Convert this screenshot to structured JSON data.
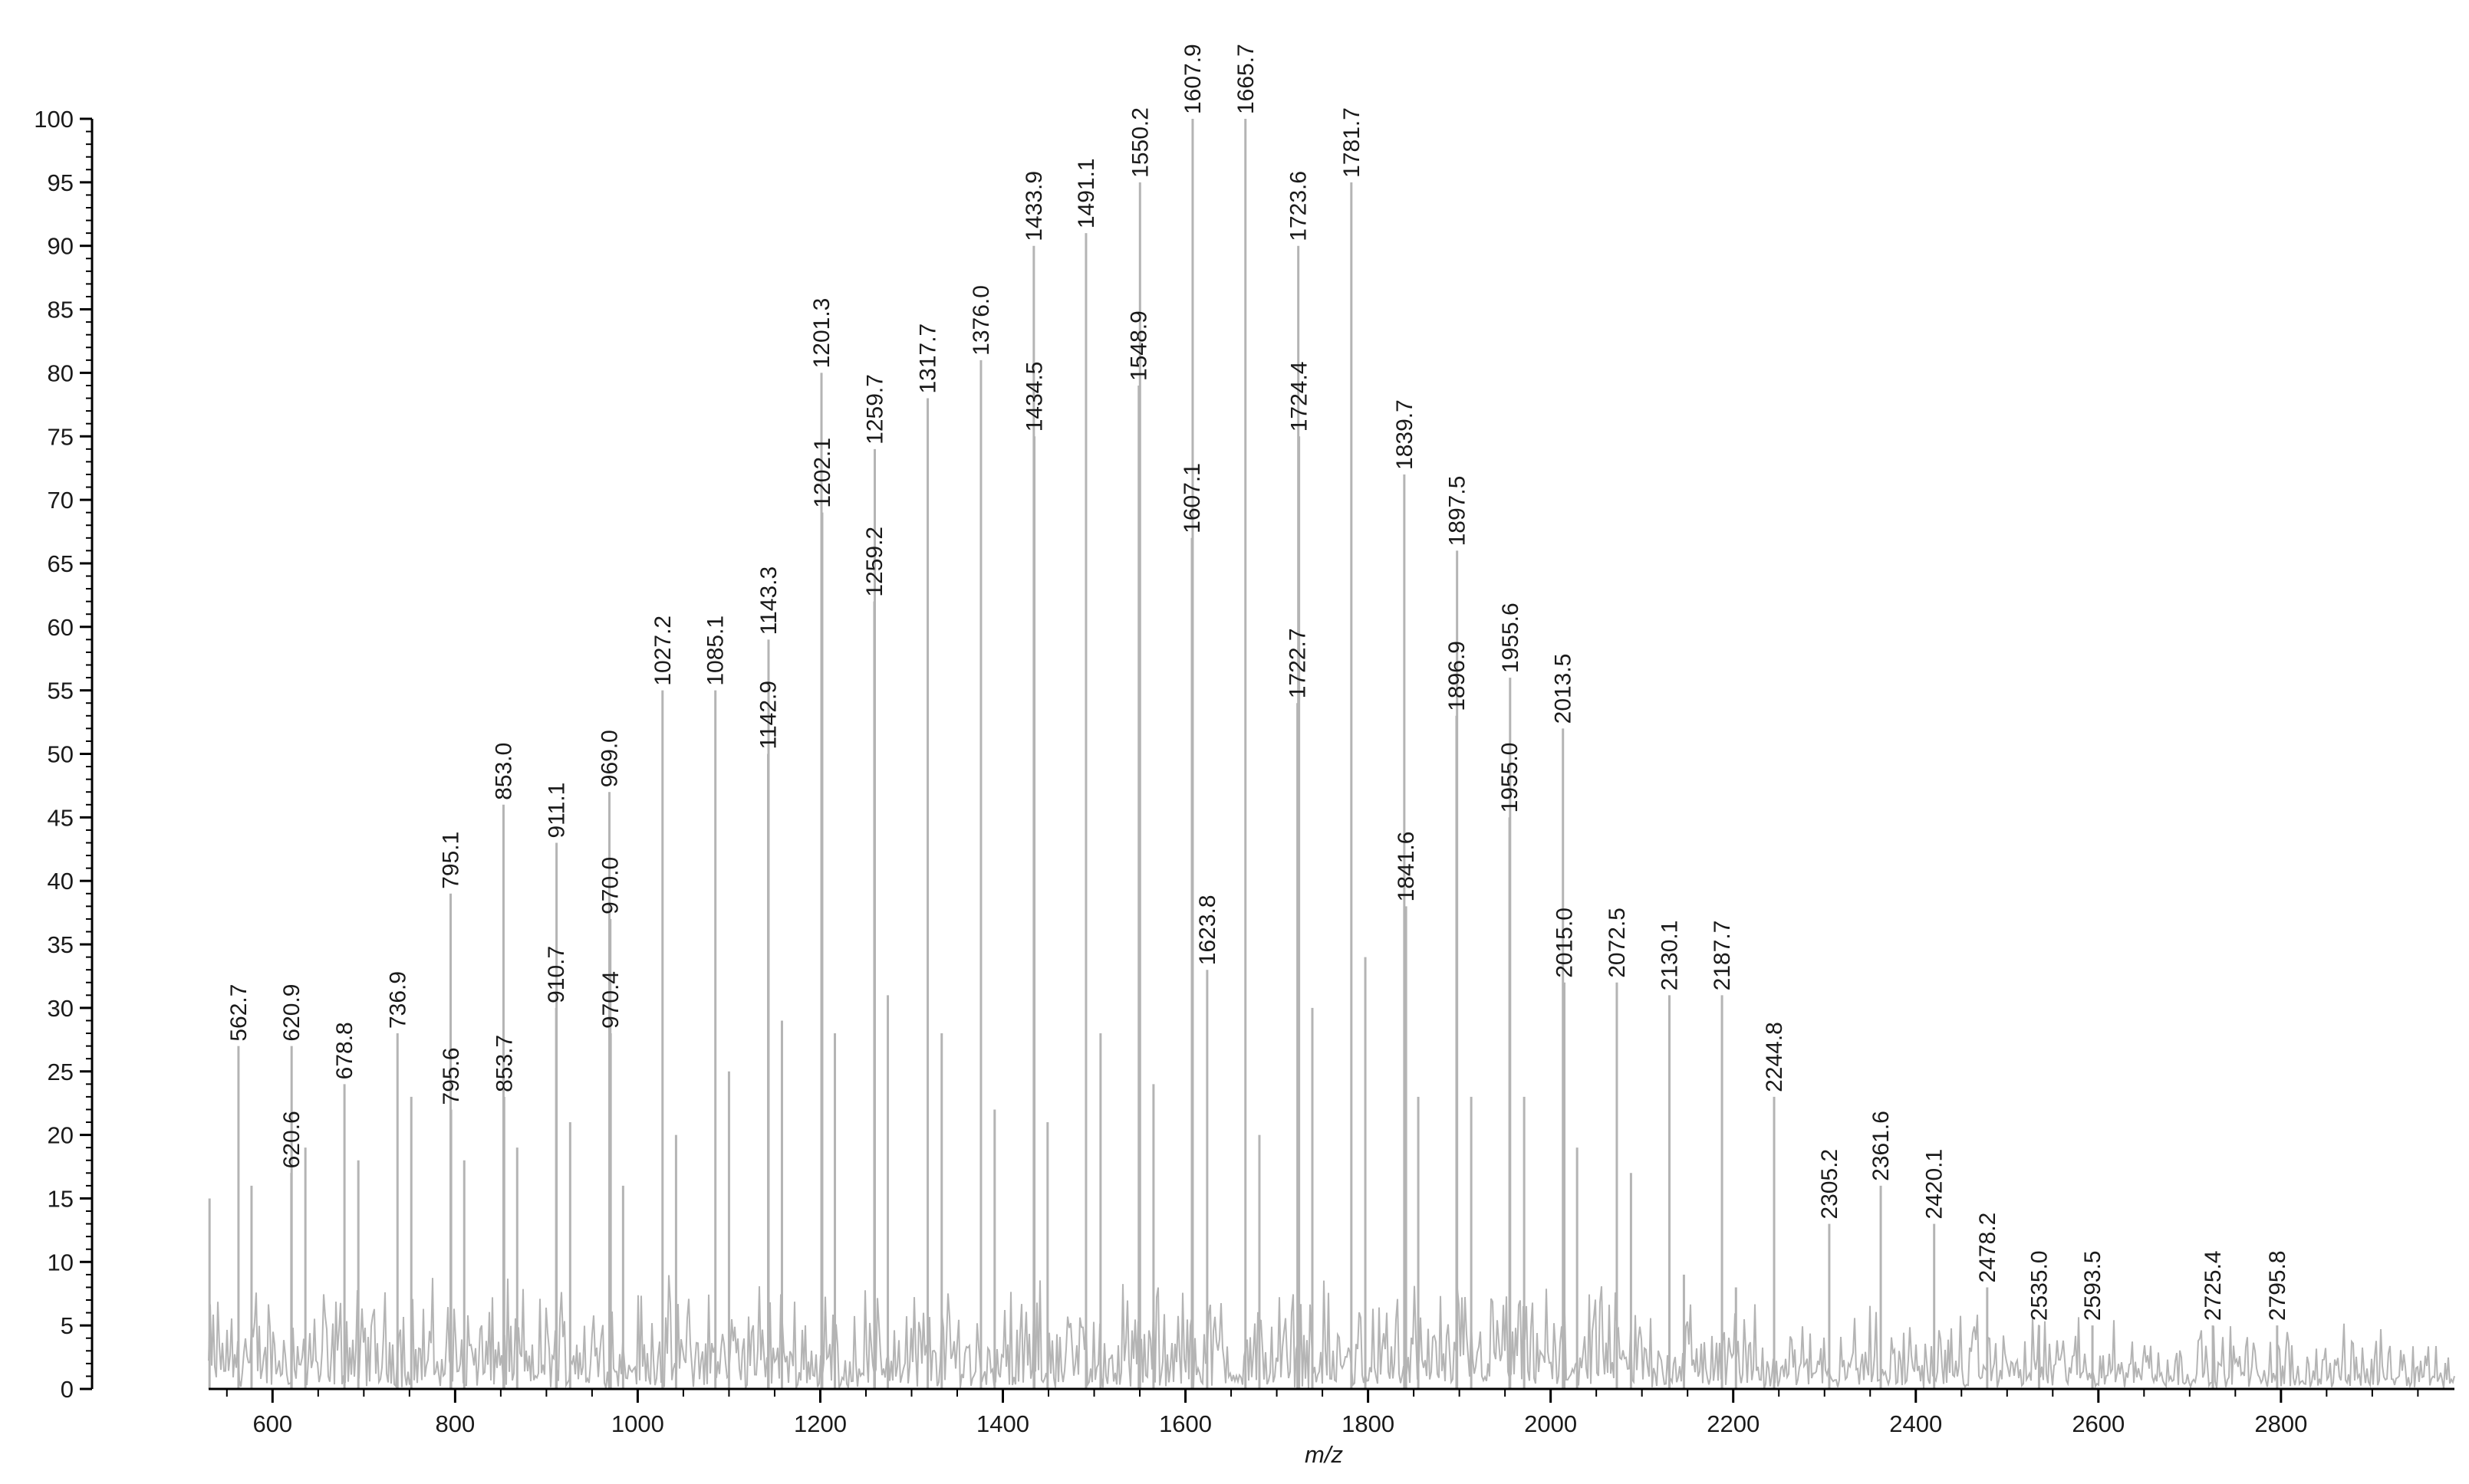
{
  "chart_data": {
    "type": "line",
    "xlabel": "m/z",
    "ylabel": "",
    "xlim": [
      530,
      2990
    ],
    "ylim": [
      0,
      100
    ],
    "grid": false,
    "x_ticks": [
      600,
      800,
      1000,
      1200,
      1400,
      1600,
      1800,
      2000,
      2200,
      2400,
      2600,
      2800
    ],
    "y_ticks": [
      0,
      5,
      10,
      15,
      20,
      25,
      30,
      35,
      40,
      45,
      50,
      55,
      60,
      65,
      70,
      75,
      80,
      85,
      90,
      95,
      100
    ],
    "colors": {
      "spectrum": "#b4b4b4",
      "axis": "#000000",
      "text": "#1a1a1a"
    },
    "labeled_peaks": [
      {
        "mz": 562.7,
        "label": "562.7",
        "intensity": 27
      },
      {
        "mz": 620.6,
        "label": "620.6",
        "intensity": 17
      },
      {
        "mz": 620.9,
        "label": "620.9",
        "intensity": 27
      },
      {
        "mz": 678.8,
        "label": "678.8",
        "intensity": 24
      },
      {
        "mz": 736.9,
        "label": "736.9",
        "intensity": 28
      },
      {
        "mz": 795.1,
        "label": "795.1",
        "intensity": 39
      },
      {
        "mz": 795.6,
        "label": "795.6",
        "intensity": 22
      },
      {
        "mz": 853.0,
        "label": "853.0",
        "intensity": 46
      },
      {
        "mz": 853.7,
        "label": "853.7",
        "intensity": 23
      },
      {
        "mz": 910.7,
        "label": "910.7",
        "intensity": 30
      },
      {
        "mz": 911.1,
        "label": "911.1",
        "intensity": 43
      },
      {
        "mz": 969.0,
        "label": "969.0",
        "intensity": 47
      },
      {
        "mz": 970.0,
        "label": "970.0",
        "intensity": 37
      },
      {
        "mz": 970.4,
        "label": "970.4",
        "intensity": 28
      },
      {
        "mz": 1027.2,
        "label": "1027.2",
        "intensity": 55
      },
      {
        "mz": 1085.1,
        "label": "1085.1",
        "intensity": 55
      },
      {
        "mz": 1142.9,
        "label": "1142.9",
        "intensity": 50
      },
      {
        "mz": 1143.3,
        "label": "1143.3",
        "intensity": 59
      },
      {
        "mz": 1201.3,
        "label": "1201.3",
        "intensity": 80
      },
      {
        "mz": 1202.1,
        "label": "1202.1",
        "intensity": 69
      },
      {
        "mz": 1259.2,
        "label": "1259.2",
        "intensity": 62
      },
      {
        "mz": 1259.7,
        "label": "1259.7",
        "intensity": 74
      },
      {
        "mz": 1317.7,
        "label": "1317.7",
        "intensity": 78
      },
      {
        "mz": 1376.0,
        "label": "1376.0",
        "intensity": 81
      },
      {
        "mz": 1433.9,
        "label": "1433.9",
        "intensity": 90
      },
      {
        "mz": 1434.5,
        "label": "1434.5",
        "intensity": 75
      },
      {
        "mz": 1491.1,
        "label": "1491.1",
        "intensity": 91
      },
      {
        "mz": 1548.9,
        "label": "1548.9",
        "intensity": 79
      },
      {
        "mz": 1550.2,
        "label": "1550.2",
        "intensity": 95
      },
      {
        "mz": 1607.1,
        "label": "1607.1",
        "intensity": 67
      },
      {
        "mz": 1607.9,
        "label": "1607.9",
        "intensity": 100
      },
      {
        "mz": 1623.8,
        "label": "1623.8",
        "intensity": 33
      },
      {
        "mz": 1665.7,
        "label": "1665.7",
        "intensity": 100
      },
      {
        "mz": 1722.7,
        "label": "1722.7",
        "intensity": 54
      },
      {
        "mz": 1723.6,
        "label": "1723.6",
        "intensity": 90
      },
      {
        "mz": 1724.4,
        "label": "1724.4",
        "intensity": 75
      },
      {
        "mz": 1781.7,
        "label": "1781.7",
        "intensity": 95
      },
      {
        "mz": 1839.7,
        "label": "1839.7",
        "intensity": 72
      },
      {
        "mz": 1841.6,
        "label": "1841.6",
        "intensity": 38
      },
      {
        "mz": 1896.9,
        "label": "1896.9",
        "intensity": 53
      },
      {
        "mz": 1897.5,
        "label": "1897.5",
        "intensity": 66
      },
      {
        "mz": 1955.0,
        "label": "1955.0",
        "intensity": 45
      },
      {
        "mz": 1955.6,
        "label": "1955.6",
        "intensity": 56
      },
      {
        "mz": 2013.5,
        "label": "2013.5",
        "intensity": 52
      },
      {
        "mz": 2015.0,
        "label": "2015.0",
        "intensity": 32
      },
      {
        "mz": 2072.5,
        "label": "2072.5",
        "intensity": 32
      },
      {
        "mz": 2130.1,
        "label": "2130.1",
        "intensity": 31
      },
      {
        "mz": 2187.7,
        "label": "2187.7",
        "intensity": 31
      },
      {
        "mz": 2244.8,
        "label": "2244.8",
        "intensity": 23
      },
      {
        "mz": 2305.2,
        "label": "2305.2",
        "intensity": 13
      },
      {
        "mz": 2361.6,
        "label": "2361.6",
        "intensity": 16
      },
      {
        "mz": 2420.1,
        "label": "2420.1",
        "intensity": 13
      },
      {
        "mz": 2478.2,
        "label": "2478.2",
        "intensity": 8
      },
      {
        "mz": 2535.0,
        "label": "2535.0",
        "intensity": 5
      },
      {
        "mz": 2593.5,
        "label": "2593.5",
        "intensity": 5
      },
      {
        "mz": 2725.4,
        "label": "2725.4",
        "intensity": 5
      },
      {
        "mz": 2795.8,
        "label": "2795.8",
        "intensity": 5
      }
    ],
    "unlabeled_peaks": [
      {
        "mz": 531,
        "intensity": 15
      },
      {
        "mz": 577,
        "intensity": 16
      },
      {
        "mz": 636,
        "intensity": 19
      },
      {
        "mz": 694,
        "intensity": 18
      },
      {
        "mz": 752,
        "intensity": 23
      },
      {
        "mz": 810,
        "intensity": 18
      },
      {
        "mz": 868,
        "intensity": 19
      },
      {
        "mz": 926,
        "intensity": 21
      },
      {
        "mz": 984,
        "intensity": 16
      },
      {
        "mz": 1042,
        "intensity": 20
      },
      {
        "mz": 1100,
        "intensity": 25
      },
      {
        "mz": 1158,
        "intensity": 29
      },
      {
        "mz": 1216,
        "intensity": 28
      },
      {
        "mz": 1274,
        "intensity": 31
      },
      {
        "mz": 1333,
        "intensity": 28
      },
      {
        "mz": 1391,
        "intensity": 22
      },
      {
        "mz": 1449,
        "intensity": 21
      },
      {
        "mz": 1507,
        "intensity": 28
      },
      {
        "mz": 1565,
        "intensity": 24
      },
      {
        "mz": 1681,
        "intensity": 20
      },
      {
        "mz": 1739,
        "intensity": 30
      },
      {
        "mz": 1797,
        "intensity": 34
      },
      {
        "mz": 1855,
        "intensity": 23
      },
      {
        "mz": 1913,
        "intensity": 23
      },
      {
        "mz": 1971,
        "intensity": 23
      },
      {
        "mz": 2029,
        "intensity": 19
      },
      {
        "mz": 2088,
        "intensity": 17
      },
      {
        "mz": 2146,
        "intensity": 9
      },
      {
        "mz": 2203,
        "intensity": 8
      }
    ]
  }
}
